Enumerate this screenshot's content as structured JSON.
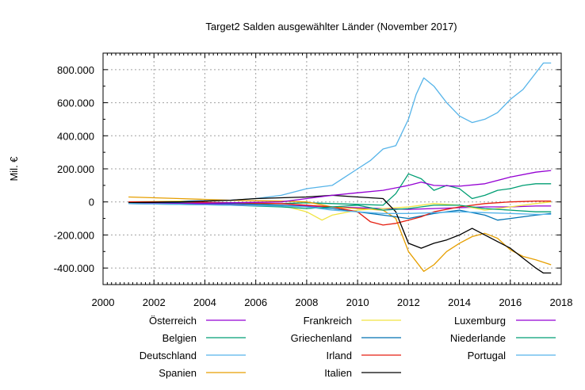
{
  "chart_data": {
    "type": "line",
    "title": "Target2 Salden ausgewählter Länder (November 2017)",
    "xlabel": "",
    "ylabel": "Mil. €",
    "xlim": [
      2000,
      2018
    ],
    "ylim": [
      -500000,
      900000
    ],
    "x_ticks": [
      2000,
      2002,
      2004,
      2006,
      2008,
      2010,
      2012,
      2014,
      2016,
      2018
    ],
    "x_tick_labels": [
      "2000",
      "2002",
      "2004",
      "2006",
      "2008",
      "2010",
      "2012",
      "2014",
      "2016",
      "2018"
    ],
    "y_ticks": [
      -400000,
      -200000,
      0,
      200000,
      400000,
      600000,
      800000
    ],
    "y_tick_labels": [
      "-400.000",
      "-200.000",
      "0",
      "200.000",
      "400.000",
      "600.000",
      "800.000"
    ],
    "grid": true,
    "legend_position": "bottom",
    "series": [
      {
        "name": "Österreich",
        "color": "#9400d3",
        "points": [
          [
            2001,
            -10000
          ],
          [
            2003,
            -12000
          ],
          [
            2005,
            -15000
          ],
          [
            2007,
            -20000
          ],
          [
            2008,
            -25000
          ],
          [
            2009,
            -30000
          ],
          [
            2010,
            -35000
          ],
          [
            2011,
            -40000
          ],
          [
            2012,
            -45000
          ],
          [
            2013,
            -40000
          ],
          [
            2014,
            -35000
          ],
          [
            2015,
            -30000
          ],
          [
            2016,
            -30000
          ],
          [
            2017,
            -25000
          ],
          [
            2017.6,
            -25000
          ]
        ]
      },
      {
        "name": "Belgien",
        "color": "#009e73",
        "points": [
          [
            2001,
            0
          ],
          [
            2003,
            -5000
          ],
          [
            2005,
            -8000
          ],
          [
            2007,
            -10000
          ],
          [
            2008,
            -5000
          ],
          [
            2009,
            -10000
          ],
          [
            2010,
            -15000
          ],
          [
            2011,
            -20000
          ],
          [
            2011.5,
            50000
          ],
          [
            2012,
            170000
          ],
          [
            2012.5,
            140000
          ],
          [
            2013,
            70000
          ],
          [
            2013.5,
            100000
          ],
          [
            2014,
            80000
          ],
          [
            2014.5,
            20000
          ],
          [
            2015,
            40000
          ],
          [
            2015.5,
            70000
          ],
          [
            2016,
            80000
          ],
          [
            2016.5,
            100000
          ],
          [
            2017,
            110000
          ],
          [
            2017.6,
            110000
          ]
        ]
      },
      {
        "name": "Deutschland",
        "color": "#56b4e9",
        "points": [
          [
            2001,
            0
          ],
          [
            2003,
            5000
          ],
          [
            2005,
            10000
          ],
          [
            2006,
            20000
          ],
          [
            2007,
            40000
          ],
          [
            2008,
            80000
          ],
          [
            2009,
            100000
          ],
          [
            2009.5,
            150000
          ],
          [
            2010,
            200000
          ],
          [
            2010.5,
            250000
          ],
          [
            2011,
            320000
          ],
          [
            2011.5,
            340000
          ],
          [
            2012,
            500000
          ],
          [
            2012.3,
            650000
          ],
          [
            2012.6,
            750000
          ],
          [
            2013,
            700000
          ],
          [
            2013.5,
            600000
          ],
          [
            2014,
            520000
          ],
          [
            2014.5,
            480000
          ],
          [
            2015,
            500000
          ],
          [
            2015.5,
            540000
          ],
          [
            2016,
            620000
          ],
          [
            2016.5,
            680000
          ],
          [
            2017,
            780000
          ],
          [
            2017.3,
            840000
          ],
          [
            2017.6,
            840000
          ]
        ]
      },
      {
        "name": "Spanien",
        "color": "#e69f00",
        "points": [
          [
            2001,
            30000
          ],
          [
            2003,
            20000
          ],
          [
            2005,
            10000
          ],
          [
            2007,
            5000
          ],
          [
            2008,
            0
          ],
          [
            2009,
            -30000
          ],
          [
            2010,
            -40000
          ],
          [
            2011,
            -50000
          ],
          [
            2011.5,
            -100000
          ],
          [
            2012,
            -300000
          ],
          [
            2012.6,
            -420000
          ],
          [
            2013,
            -380000
          ],
          [
            2013.5,
            -300000
          ],
          [
            2014,
            -250000
          ],
          [
            2014.5,
            -210000
          ],
          [
            2015,
            -190000
          ],
          [
            2015.5,
            -220000
          ],
          [
            2016,
            -290000
          ],
          [
            2016.5,
            -330000
          ],
          [
            2017,
            -350000
          ],
          [
            2017.6,
            -380000
          ]
        ]
      },
      {
        "name": "Frankreich",
        "color": "#f0e442",
        "points": [
          [
            2001,
            0
          ],
          [
            2003,
            5000
          ],
          [
            2005,
            -10000
          ],
          [
            2007,
            -20000
          ],
          [
            2008,
            -60000
          ],
          [
            2008.6,
            -110000
          ],
          [
            2009,
            -80000
          ],
          [
            2010,
            -50000
          ],
          [
            2011,
            -40000
          ],
          [
            2012,
            -30000
          ],
          [
            2013,
            -10000
          ],
          [
            2014,
            -20000
          ],
          [
            2015,
            -50000
          ],
          [
            2016,
            -30000
          ],
          [
            2017,
            -10000
          ],
          [
            2017.6,
            0
          ]
        ]
      },
      {
        "name": "Griechenland",
        "color": "#0072b2",
        "points": [
          [
            2001,
            0
          ],
          [
            2003,
            -5000
          ],
          [
            2005,
            -10000
          ],
          [
            2007,
            -20000
          ],
          [
            2008,
            -30000
          ],
          [
            2009,
            -40000
          ],
          [
            2010,
            -60000
          ],
          [
            2011,
            -80000
          ],
          [
            2012,
            -100000
          ],
          [
            2013,
            -70000
          ],
          [
            2014,
            -50000
          ],
          [
            2015,
            -80000
          ],
          [
            2015.5,
            -110000
          ],
          [
            2016,
            -100000
          ],
          [
            2017,
            -80000
          ],
          [
            2017.6,
            -70000
          ]
        ]
      },
      {
        "name": "Irland",
        "color": "#e51e10",
        "points": [
          [
            2001,
            0
          ],
          [
            2003,
            0
          ],
          [
            2005,
            -5000
          ],
          [
            2007,
            -10000
          ],
          [
            2008,
            -20000
          ],
          [
            2009,
            -30000
          ],
          [
            2010,
            -60000
          ],
          [
            2010.5,
            -120000
          ],
          [
            2011,
            -140000
          ],
          [
            2011.5,
            -130000
          ],
          [
            2012,
            -110000
          ],
          [
            2012.5,
            -90000
          ],
          [
            2013,
            -60000
          ],
          [
            2014,
            -30000
          ],
          [
            2015,
            -10000
          ],
          [
            2016,
            0
          ],
          [
            2017,
            5000
          ],
          [
            2017.6,
            5000
          ]
        ]
      },
      {
        "name": "Italien",
        "color": "#000000",
        "points": [
          [
            2001,
            -5000
          ],
          [
            2003,
            0
          ],
          [
            2005,
            10000
          ],
          [
            2006,
            20000
          ],
          [
            2007,
            25000
          ],
          [
            2008,
            30000
          ],
          [
            2009,
            40000
          ],
          [
            2010,
            30000
          ],
          [
            2011,
            20000
          ],
          [
            2011.5,
            -60000
          ],
          [
            2012,
            -250000
          ],
          [
            2012.5,
            -280000
          ],
          [
            2013,
            -250000
          ],
          [
            2013.5,
            -230000
          ],
          [
            2014,
            -200000
          ],
          [
            2014.5,
            -160000
          ],
          [
            2015,
            -200000
          ],
          [
            2015.5,
            -240000
          ],
          [
            2016,
            -280000
          ],
          [
            2016.5,
            -340000
          ],
          [
            2017,
            -400000
          ],
          [
            2017.3,
            -430000
          ],
          [
            2017.6,
            -430000
          ]
        ]
      },
      {
        "name": "Luxemburg",
        "color": "#9400d3",
        "points": [
          [
            2001,
            -10000
          ],
          [
            2003,
            -10000
          ],
          [
            2005,
            -5000
          ],
          [
            2007,
            0
          ],
          [
            2008,
            20000
          ],
          [
            2009,
            40000
          ],
          [
            2010,
            55000
          ],
          [
            2011,
            70000
          ],
          [
            2012,
            100000
          ],
          [
            2012.5,
            120000
          ],
          [
            2013,
            100000
          ],
          [
            2014,
            95000
          ],
          [
            2015,
            110000
          ],
          [
            2016,
            150000
          ],
          [
            2017,
            180000
          ],
          [
            2017.6,
            190000
          ]
        ]
      },
      {
        "name": "Niederlande",
        "color": "#009e73",
        "points": [
          [
            2001,
            -10000
          ],
          [
            2003,
            -15000
          ],
          [
            2005,
            -20000
          ],
          [
            2007,
            -30000
          ],
          [
            2008,
            -40000
          ],
          [
            2009,
            -30000
          ],
          [
            2010,
            -20000
          ],
          [
            2011,
            -50000
          ],
          [
            2012,
            -40000
          ],
          [
            2013,
            -20000
          ],
          [
            2014,
            -20000
          ],
          [
            2015,
            -40000
          ],
          [
            2016,
            -50000
          ],
          [
            2017,
            -60000
          ],
          [
            2017.6,
            -60000
          ]
        ]
      },
      {
        "name": "Portugal",
        "color": "#56b4e9",
        "points": [
          [
            2001,
            -10000
          ],
          [
            2003,
            -15000
          ],
          [
            2005,
            -20000
          ],
          [
            2007,
            -25000
          ],
          [
            2008,
            -30000
          ],
          [
            2009,
            -50000
          ],
          [
            2010,
            -60000
          ],
          [
            2011,
            -70000
          ],
          [
            2012,
            -70000
          ],
          [
            2013,
            -65000
          ],
          [
            2014,
            -60000
          ],
          [
            2015,
            -65000
          ],
          [
            2016,
            -70000
          ],
          [
            2017,
            -75000
          ],
          [
            2017.6,
            -75000
          ]
        ]
      }
    ]
  }
}
